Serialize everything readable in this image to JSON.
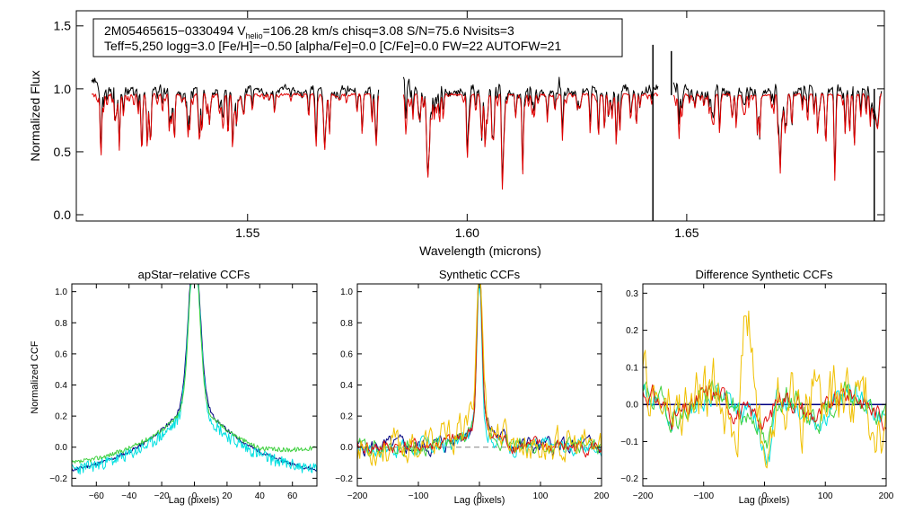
{
  "colors": {
    "observed": "#000000",
    "model": "#e00000",
    "dashed_zero": "#808080",
    "visit1": "#000080",
    "visit2": "#00e0e0",
    "visit3": "#40d040",
    "visit4": "#e01010",
    "visit5": "#f0c000"
  },
  "chart_data": [
    {
      "id": "spectrum",
      "type": "line",
      "title": "",
      "xlabel": "Wavelength (microns)",
      "ylabel": "Normalized Flux",
      "xlim": [
        1.511,
        1.695
      ],
      "ylim": [
        -0.05,
        1.62
      ],
      "xticks": [
        1.55,
        1.6,
        1.65
      ],
      "xtick_labels": [
        "1.55",
        "1.60",
        "1.65"
      ],
      "yticks": [
        0.0,
        0.5,
        1.0,
        1.5
      ],
      "ytick_labels": [
        "0.0",
        "0.5",
        "1.0",
        "1.5"
      ],
      "info_line1_a": "2M05465615−0330494  V",
      "info_line1_sub": "helio",
      "info_line1_b": "=106.28 km/s  chisq=3.08  S/N=75.6  Nvisits=3",
      "info_line2": "Teff=5,250 logg=3.0 [Fe/H]=−0.50 [alpha/Fe]=0.0 [C/Fe]=0.0 FW=22 AUTOFW=21",
      "chips": [
        [
          1.5145,
          1.58
        ],
        [
          1.5855,
          1.6435
        ],
        [
          1.647,
          1.6945
        ]
      ],
      "series": [
        {
          "name": "observed spectrum",
          "color_key": "observed",
          "continuum": 0.99,
          "seed": 7
        },
        {
          "name": "synthetic model",
          "color_key": "model",
          "continuum": 0.955,
          "seed": 7
        }
      ],
      "spikes": [
        {
          "x": 1.6423,
          "y_top": 1.35,
          "y_bottom": -0.05
        },
        {
          "x": 1.6465,
          "y_top": 1.3,
          "y_bottom": 0.95
        },
        {
          "x": 1.6927,
          "y_top": 1.0,
          "y_bottom": -0.05
        }
      ]
    },
    {
      "id": "apstar_ccf",
      "type": "line",
      "title": "apStar−relative CCFs",
      "xlabel": "Lag (pixels)",
      "ylabel": "Normalized CCF",
      "xlim": [
        -75,
        75
      ],
      "ylim": [
        -0.25,
        1.05
      ],
      "xticks": [
        -60,
        -40,
        -20,
        0,
        20,
        40,
        60
      ],
      "xtick_labels": [
        "−60",
        "−40",
        "−20",
        "0",
        "20",
        "40",
        "60"
      ],
      "yticks": [
        -0.2,
        0.0,
        0.2,
        0.4,
        0.6,
        0.8,
        1.0
      ],
      "ytick_labels": [
        "−0.2",
        "0.0",
        "0.2",
        "0.4",
        "0.6",
        "0.8",
        "1.0"
      ],
      "zero_line": false,
      "series": [
        {
          "name": "visit 1",
          "color_key": "visit1",
          "peak": 0.98,
          "w": 3.5,
          "wing": 0.35,
          "ws": 35,
          "base": -0.22,
          "edge_r": 0.0,
          "noise": 0.012,
          "seed": 11
        },
        {
          "name": "visit 2",
          "color_key": "visit2",
          "peak": 0.98,
          "w": 3.5,
          "wing": 0.3,
          "ws": 30,
          "base": -0.2,
          "edge_r": 0.0,
          "noise": 0.04,
          "seed": 23
        },
        {
          "name": "visit 3",
          "color_key": "visit3",
          "peak": 1.0,
          "w": 3.2,
          "wing": 0.32,
          "ws": 33,
          "base": -0.16,
          "edge_r": 0.1,
          "noise": 0.015,
          "seed": 37
        }
      ]
    },
    {
      "id": "synthetic_ccf",
      "type": "line",
      "title": "Synthetic CCFs",
      "xlabel": "Lag (pixels)",
      "ylabel": "",
      "xlim": [
        -200,
        200
      ],
      "ylim": [
        -0.25,
        1.05
      ],
      "xticks": [
        -200,
        -100,
        0,
        100,
        200
      ],
      "xtick_labels": [
        "−200",
        "−100",
        "0",
        "100",
        "200"
      ],
      "yticks": [
        -0.2,
        0.0,
        0.2,
        0.4,
        0.6,
        0.8,
        1.0
      ],
      "ytick_labels": [
        "−0.2",
        "0.0",
        "0.2",
        "0.4",
        "0.6",
        "0.8",
        "1.0"
      ],
      "zero_line": true,
      "series": [
        {
          "name": "visit 1",
          "color_key": "visit1",
          "peak": 0.98,
          "w": 4,
          "wing": 0.25,
          "ws": 25,
          "base": 0.0,
          "noise": 0.06,
          "seed": 5
        },
        {
          "name": "visit 2",
          "color_key": "visit2",
          "peak": 0.98,
          "w": 4,
          "wing": 0.18,
          "ws": 22,
          "base": 0.0,
          "noise": 0.06,
          "seed": 17
        },
        {
          "name": "visit 3",
          "color_key": "visit3",
          "peak": 1.0,
          "w": 4,
          "wing": 0.18,
          "ws": 22,
          "base": 0.0,
          "noise": 0.05,
          "seed": 29
        },
        {
          "name": "visit 4",
          "color_key": "visit4",
          "peak": 1.0,
          "w": 4,
          "wing": 0.2,
          "ws": 25,
          "base": 0.0,
          "noise": 0.05,
          "seed": 41
        },
        {
          "name": "visit 5",
          "color_key": "visit5",
          "peak": 0.9,
          "w": 5,
          "wing": 0.28,
          "ws": 30,
          "base": 0.0,
          "noise": 0.11,
          "seed": 53
        }
      ]
    },
    {
      "id": "difference_ccf",
      "type": "line",
      "title": "Difference Synthetic CCFs",
      "xlabel": "Lag (pixels)",
      "ylabel": "",
      "xlim": [
        -200,
        200
      ],
      "ylim": [
        -0.22,
        0.325
      ],
      "xticks": [
        -200,
        -100,
        0,
        100,
        200
      ],
      "xtick_labels": [
        "−200",
        "−100",
        "0",
        "100",
        "200"
      ],
      "yticks": [
        -0.2,
        -0.1,
        0.0,
        0.1,
        0.2,
        0.3
      ],
      "ytick_labels": [
        "−0.2",
        "−0.1",
        "0.0",
        "0.1",
        "0.2",
        "0.3"
      ],
      "zero_line": false,
      "series": [
        {
          "name": "visit 1",
          "color_key": "visit1",
          "kind": "flat",
          "level": 0.0,
          "seed": 3
        },
        {
          "name": "visit 2",
          "color_key": "visit2",
          "kind": "diff",
          "dip": -0.16,
          "noise": 0.035,
          "seed": 13
        },
        {
          "name": "visit 3",
          "color_key": "visit3",
          "kind": "diff",
          "dip": -0.13,
          "noise": 0.035,
          "seed": 19
        },
        {
          "name": "visit 4",
          "color_key": "visit4",
          "kind": "diff",
          "dip": -0.06,
          "noise": 0.03,
          "seed": 31
        },
        {
          "name": "visit 5",
          "color_key": "visit5",
          "kind": "diff_yellow",
          "dip": -0.15,
          "noise": 0.09,
          "seed": 47
        }
      ]
    }
  ]
}
